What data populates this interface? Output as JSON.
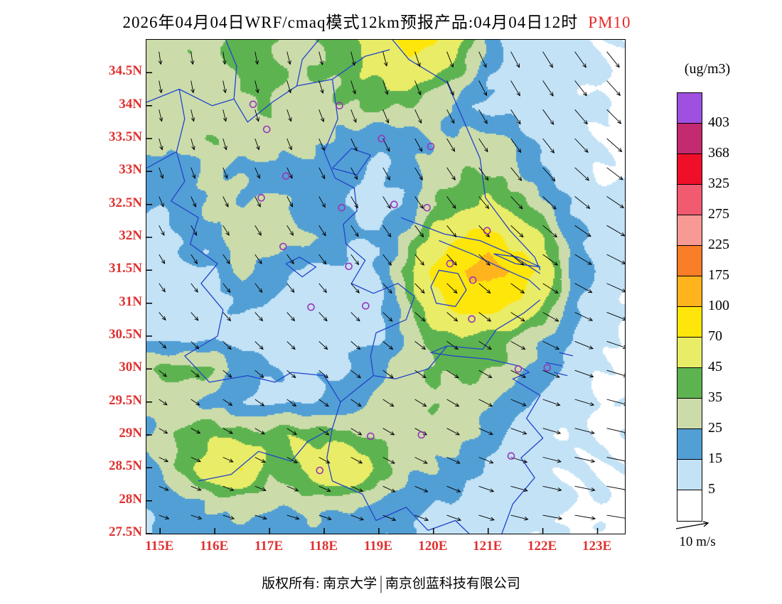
{
  "title": {
    "main": "2026年04月04日WRF/cmaq模式12km预报产品:04月04日12时",
    "pollutant": "PM10"
  },
  "legend": {
    "unit": "(ug/m3)",
    "levels_desc": [
      "403",
      "368",
      "325",
      "275",
      "225",
      "175",
      "100",
      "70",
      "45",
      "35",
      "25",
      "15",
      "5"
    ],
    "colors_desc": [
      "#a050e0",
      "#c42a70",
      "#f00f28",
      "#f25a70",
      "#f79a94",
      "#fa7d28",
      "#ffb41e",
      "#ffe60a",
      "#e9ec66",
      "#5eb351",
      "#cbdcaa",
      "#529fd5",
      "#c3e2f6",
      "#ffffff"
    ]
  },
  "axes": {
    "lat_labels": [
      "34.5N",
      "34N",
      "33.5N",
      "33N",
      "32.5N",
      "32N",
      "31.5N",
      "31N",
      "30.5N",
      "30N",
      "29.5N",
      "29N",
      "28.5N",
      "28N",
      "27.5N"
    ],
    "lat_values": [
      34.5,
      34,
      33.5,
      33,
      32.5,
      32,
      31.5,
      31,
      30.5,
      30,
      29.5,
      29,
      28.5,
      28,
      27.5
    ],
    "lon_labels": [
      "115E",
      "116E",
      "117E",
      "118E",
      "119E",
      "120E",
      "121E",
      "122E",
      "123E"
    ],
    "lon_values": [
      115,
      116,
      117,
      118,
      119,
      120,
      121,
      122,
      123
    ]
  },
  "wind_legend": {
    "label": "10 m/s",
    "speed_m_s": 10
  },
  "footer": {
    "left": "版权所有: 南京大学",
    "sep": "|",
    "right": "南京创蓝科技有限公司"
  },
  "chart_data": {
    "type": "heatmap",
    "pollutant": "PM10",
    "unit": "ug/m3",
    "lon_range": [
      114.5,
      123.5
    ],
    "lat_range": [
      27.5,
      35.0
    ],
    "grid_step_deg": 0.5,
    "band_levels": [
      5,
      15,
      25,
      35,
      45,
      70,
      100,
      175,
      225,
      275,
      325,
      368,
      403
    ],
    "band_colors": [
      "#ffffff",
      "#c3e2f6",
      "#529fd5",
      "#cbdcaa",
      "#5eb351",
      "#e9ec66",
      "#ffe60a",
      "#ffb41e",
      "#fa7d28",
      "#f79a94",
      "#f25a70",
      "#f00f28",
      "#c42a70",
      "#a050e0"
    ],
    "pm10_grid_lats": [
      35,
      34.5,
      34,
      33.5,
      33,
      32.5,
      32,
      31.5,
      31,
      30.5,
      30,
      29.5,
      29,
      28.5,
      28,
      27.5
    ],
    "pm10_grid": [
      [
        30,
        32,
        30,
        34,
        38,
        36,
        32,
        35,
        45,
        55,
        85,
        75,
        45,
        20,
        12,
        10,
        8,
        5,
        3
      ],
      [
        28,
        30,
        34,
        30,
        36,
        40,
        32,
        36,
        42,
        48,
        55,
        45,
        35,
        18,
        12,
        10,
        8,
        5,
        3
      ],
      [
        28,
        30,
        32,
        30,
        32,
        34,
        30,
        32,
        36,
        38,
        34,
        28,
        18,
        12,
        10,
        10,
        8,
        5,
        3
      ],
      [
        26,
        30,
        32,
        34,
        30,
        32,
        30,
        28,
        20,
        16,
        18,
        26,
        28,
        30,
        22,
        12,
        8,
        6,
        4
      ],
      [
        20,
        18,
        20,
        28,
        24,
        18,
        20,
        22,
        16,
        14,
        20,
        30,
        36,
        34,
        28,
        16,
        10,
        6,
        4
      ],
      [
        18,
        16,
        20,
        30,
        26,
        30,
        22,
        18,
        14,
        12,
        16,
        35,
        42,
        48,
        40,
        30,
        14,
        8,
        5
      ],
      [
        14,
        12,
        16,
        22,
        30,
        34,
        28,
        24,
        16,
        14,
        30,
        50,
        70,
        80,
        60,
        45,
        20,
        10,
        6
      ],
      [
        10,
        10,
        12,
        14,
        28,
        20,
        14,
        12,
        12,
        14,
        40,
        75,
        95,
        115,
        90,
        60,
        25,
        12,
        8
      ],
      [
        10,
        8,
        10,
        12,
        16,
        14,
        12,
        10,
        10,
        12,
        30,
        60,
        80,
        85,
        70,
        45,
        20,
        10,
        6
      ],
      [
        14,
        12,
        10,
        14,
        12,
        10,
        10,
        10,
        12,
        14,
        25,
        40,
        45,
        40,
        35,
        25,
        15,
        8,
        5
      ],
      [
        30,
        38,
        42,
        35,
        20,
        14,
        12,
        14,
        16,
        25,
        30,
        35,
        40,
        38,
        30,
        20,
        10,
        6,
        4
      ],
      [
        22,
        28,
        25,
        20,
        16,
        14,
        14,
        16,
        20,
        28,
        32,
        35,
        30,
        25,
        18,
        12,
        8,
        5,
        3
      ],
      [
        20,
        30,
        40,
        45,
        38,
        42,
        45,
        40,
        35,
        32,
        35,
        30,
        28,
        20,
        12,
        8,
        6,
        4,
        3
      ],
      [
        18,
        26,
        40,
        60,
        70,
        40,
        45,
        60,
        68,
        40,
        30,
        25,
        18,
        12,
        10,
        8,
        6,
        4,
        3
      ],
      [
        14,
        18,
        24,
        30,
        28,
        26,
        28,
        30,
        28,
        24,
        20,
        16,
        12,
        10,
        8,
        6,
        5,
        4,
        3
      ],
      [
        12,
        14,
        18,
        20,
        22,
        20,
        22,
        20,
        18,
        16,
        14,
        12,
        10,
        8,
        6,
        5,
        4,
        3,
        3
      ]
    ],
    "wind": {
      "units": "m/s",
      "grid_lons": [
        114.5,
        116,
        117.5,
        119,
        120.5,
        122,
        123.5
      ],
      "grid_lats": [
        35,
        33.5,
        32,
        30.5,
        29,
        27.5
      ],
      "uv": [
        [
          [
            0.5,
            -4
          ],
          [
            0.5,
            -4
          ],
          [
            1,
            -4
          ],
          [
            1,
            -4.5
          ],
          [
            2,
            -5
          ],
          [
            3,
            -5
          ],
          [
            4,
            -5
          ]
        ],
        [
          [
            1,
            -3.5
          ],
          [
            1,
            -3.5
          ],
          [
            1.5,
            -3.5
          ],
          [
            2,
            -4
          ],
          [
            2.5,
            -4
          ],
          [
            3.5,
            -4.5
          ],
          [
            5,
            -4
          ]
        ],
        [
          [
            1.5,
            -3
          ],
          [
            2,
            -3
          ],
          [
            2,
            -3
          ],
          [
            2.5,
            -3.5
          ],
          [
            3,
            -3.5
          ],
          [
            4.5,
            -3.5
          ],
          [
            6,
            -3
          ]
        ],
        [
          [
            2,
            -2
          ],
          [
            2.5,
            -2.5
          ],
          [
            2.5,
            -2.5
          ],
          [
            3,
            -2.5
          ],
          [
            3.5,
            -2.5
          ],
          [
            5,
            -2.5
          ],
          [
            6.5,
            -2
          ]
        ],
        [
          [
            2.5,
            -1.5
          ],
          [
            3,
            -1.5
          ],
          [
            3,
            -2
          ],
          [
            3.5,
            -2
          ],
          [
            4,
            -2
          ],
          [
            5.5,
            -1.5
          ],
          [
            7,
            -1.5
          ]
        ],
        [
          [
            3,
            -1
          ],
          [
            3.5,
            -1
          ],
          [
            4,
            -1
          ],
          [
            4,
            -1.5
          ],
          [
            4.5,
            -1.5
          ],
          [
            6,
            -1
          ],
          [
            7,
            -1
          ]
        ]
      ]
    },
    "stations_lonlat": [
      [
        116.7,
        34.02
      ],
      [
        116.95,
        33.64
      ],
      [
        118.28,
        34.0
      ],
      [
        119.05,
        33.5
      ],
      [
        119.95,
        33.38
      ],
      [
        117.3,
        32.93
      ],
      [
        116.85,
        32.6
      ],
      [
        118.32,
        32.45
      ],
      [
        119.28,
        32.5
      ],
      [
        119.88,
        32.45
      ],
      [
        120.98,
        32.1
      ],
      [
        117.25,
        31.86
      ],
      [
        118.45,
        31.56
      ],
      [
        120.3,
        31.6
      ],
      [
        120.72,
        31.35
      ],
      [
        117.76,
        30.94
      ],
      [
        118.76,
        30.96
      ],
      [
        120.7,
        30.76
      ],
      [
        121.55,
        30.0
      ],
      [
        122.08,
        30.02
      ],
      [
        118.85,
        28.98
      ],
      [
        119.78,
        29.0
      ],
      [
        121.42,
        28.68
      ],
      [
        117.92,
        28.46
      ]
    ]
  }
}
